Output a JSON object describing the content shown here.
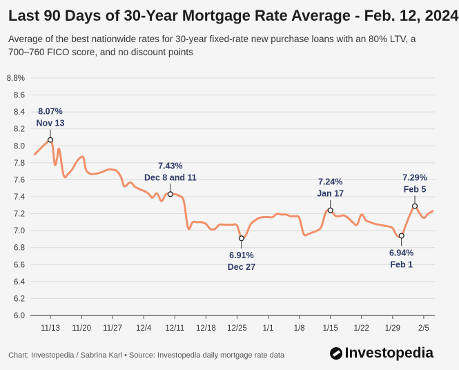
{
  "header": {
    "title": "Last 90 Days of 30-Year Mortgage Rate Average - Feb. 12, 2024",
    "subtitle": "Average of the best nationwide rates for 30-year fixed-rate new purchase loans with an 80% LTV, a 700–760 FICO score, and no discount points"
  },
  "footer": {
    "source": "Chart: Investopedia / Sabrina Karl • Source: Investopedia daily mortgage rate data",
    "brand": "Investopedia"
  },
  "colors": {
    "line": "#f0906a",
    "annotation": "#2b3a67",
    "grid": "#d9d9d9",
    "axis_text": "#333333"
  },
  "chart_data": {
    "type": "line",
    "title": "Last 90 Days of 30-Year Mortgage Rate Average - Feb. 12, 2024",
    "xlabel": "",
    "ylabel": "",
    "ylim": [
      6.0,
      8.8
    ],
    "yticks": [
      6.0,
      6.2,
      6.4,
      6.6,
      6.8,
      7.0,
      7.2,
      7.4,
      7.6,
      7.8,
      8.0,
      8.2,
      8.4,
      8.6,
      8.8
    ],
    "ytick_labels": [
      "6.0",
      "6.2",
      "6.4",
      "6.6",
      "6.8",
      "7.0",
      "7.2",
      "7.4",
      "7.6",
      "7.8",
      "8.0",
      "8.2",
      "8.4",
      "8.6",
      "8.8%"
    ],
    "xlim": [
      -4.5,
      86.5
    ],
    "xticks": [
      0,
      7,
      14,
      21,
      28,
      35,
      42,
      49,
      56,
      63,
      70,
      77,
      84
    ],
    "xtick_labels": [
      "11/13",
      "11/20",
      "11/27",
      "12/4",
      "12/11",
      "12/18",
      "12/25",
      "1/1",
      "1/8",
      "1/15",
      "1/22",
      "1/29",
      "2/5"
    ],
    "grid": true,
    "series": [
      {
        "name": "30-Year Mortgage Rate Average",
        "x": [
          -3.5,
          -2,
          -1,
          0,
          0.5,
          1,
          1.5,
          2,
          3,
          4,
          5,
          6,
          7,
          7.5,
          8,
          9,
          10,
          11,
          12,
          13,
          14,
          15,
          16,
          16.5,
          17,
          18,
          19,
          20,
          21,
          22,
          22.5,
          23,
          24,
          25,
          26,
          27,
          28,
          29,
          30,
          31,
          32,
          33,
          34,
          35,
          36,
          37,
          38,
          39,
          40,
          41,
          42,
          43,
          44,
          45,
          46,
          47,
          48,
          49,
          50,
          51,
          52,
          53,
          54,
          55,
          56,
          57,
          58,
          59,
          60,
          61,
          62,
          63,
          64,
          64.5,
          65,
          66,
          67,
          68,
          69,
          70,
          71,
          72,
          73,
          74,
          75,
          76,
          77,
          78,
          79,
          80,
          81,
          82,
          83,
          84,
          85,
          86
        ],
        "y": [
          7.9,
          7.98,
          8.03,
          8.07,
          8.0,
          7.78,
          7.85,
          7.96,
          7.65,
          7.67,
          7.73,
          7.82,
          7.87,
          7.85,
          7.72,
          7.67,
          7.67,
          7.68,
          7.7,
          7.72,
          7.72,
          7.7,
          7.62,
          7.53,
          7.53,
          7.57,
          7.52,
          7.49,
          7.47,
          7.44,
          7.41,
          7.39,
          7.44,
          7.35,
          7.43,
          7.43,
          7.43,
          7.41,
          7.35,
          7.03,
          7.1,
          7.1,
          7.1,
          7.08,
          7.02,
          7.02,
          7.07,
          7.07,
          7.07,
          7.07,
          7.06,
          6.91,
          6.95,
          7.07,
          7.12,
          7.15,
          7.16,
          7.16,
          7.16,
          7.2,
          7.19,
          7.19,
          7.17,
          7.17,
          7.15,
          6.96,
          6.96,
          6.98,
          7.0,
          7.05,
          7.22,
          7.24,
          7.18,
          7.17,
          7.17,
          7.18,
          7.15,
          7.1,
          7.07,
          7.19,
          7.12,
          7.1,
          7.08,
          7.07,
          7.06,
          7.05,
          7.03,
          6.94,
          6.94,
          7.07,
          7.2,
          7.29,
          7.21,
          7.15,
          7.2,
          7.23
        ]
      }
    ],
    "annotations": [
      {
        "x": 0,
        "y": 8.07,
        "value": "8.07%",
        "date": "Nov 13",
        "position": "above"
      },
      {
        "x": 27,
        "y": 7.43,
        "value": "7.43%",
        "date": "Dec 8 and 11",
        "position": "above"
      },
      {
        "x": 43,
        "y": 6.91,
        "value": "6.91%",
        "date": "Dec 27",
        "position": "below"
      },
      {
        "x": 63,
        "y": 7.24,
        "value": "7.24%",
        "date": "Jan 17",
        "position": "above"
      },
      {
        "x": 79,
        "y": 6.94,
        "value": "6.94%",
        "date": "Feb 1",
        "position": "below"
      },
      {
        "x": 82,
        "y": 7.29,
        "value": "7.29%",
        "date": "Feb 5",
        "position": "above"
      }
    ]
  }
}
